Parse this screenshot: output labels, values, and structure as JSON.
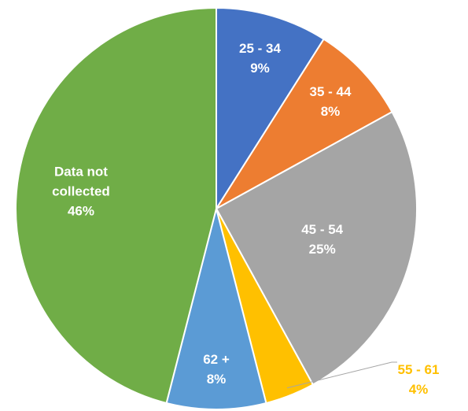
{
  "chart_data": {
    "type": "pie",
    "categories": [
      "25 - 34",
      "35 - 44",
      "45 - 54",
      "55 - 61",
      "62 +",
      "Data not collected"
    ],
    "values": [
      9,
      8,
      25,
      4,
      8,
      46
    ],
    "value_labels": [
      "9%",
      "8%",
      "25%",
      "4%",
      "8%",
      "46%"
    ],
    "colors": [
      "#4472c4",
      "#ed7d31",
      "#a5a5a5",
      "#ffc000",
      "#5b9bd5",
      "#70ad47"
    ]
  }
}
